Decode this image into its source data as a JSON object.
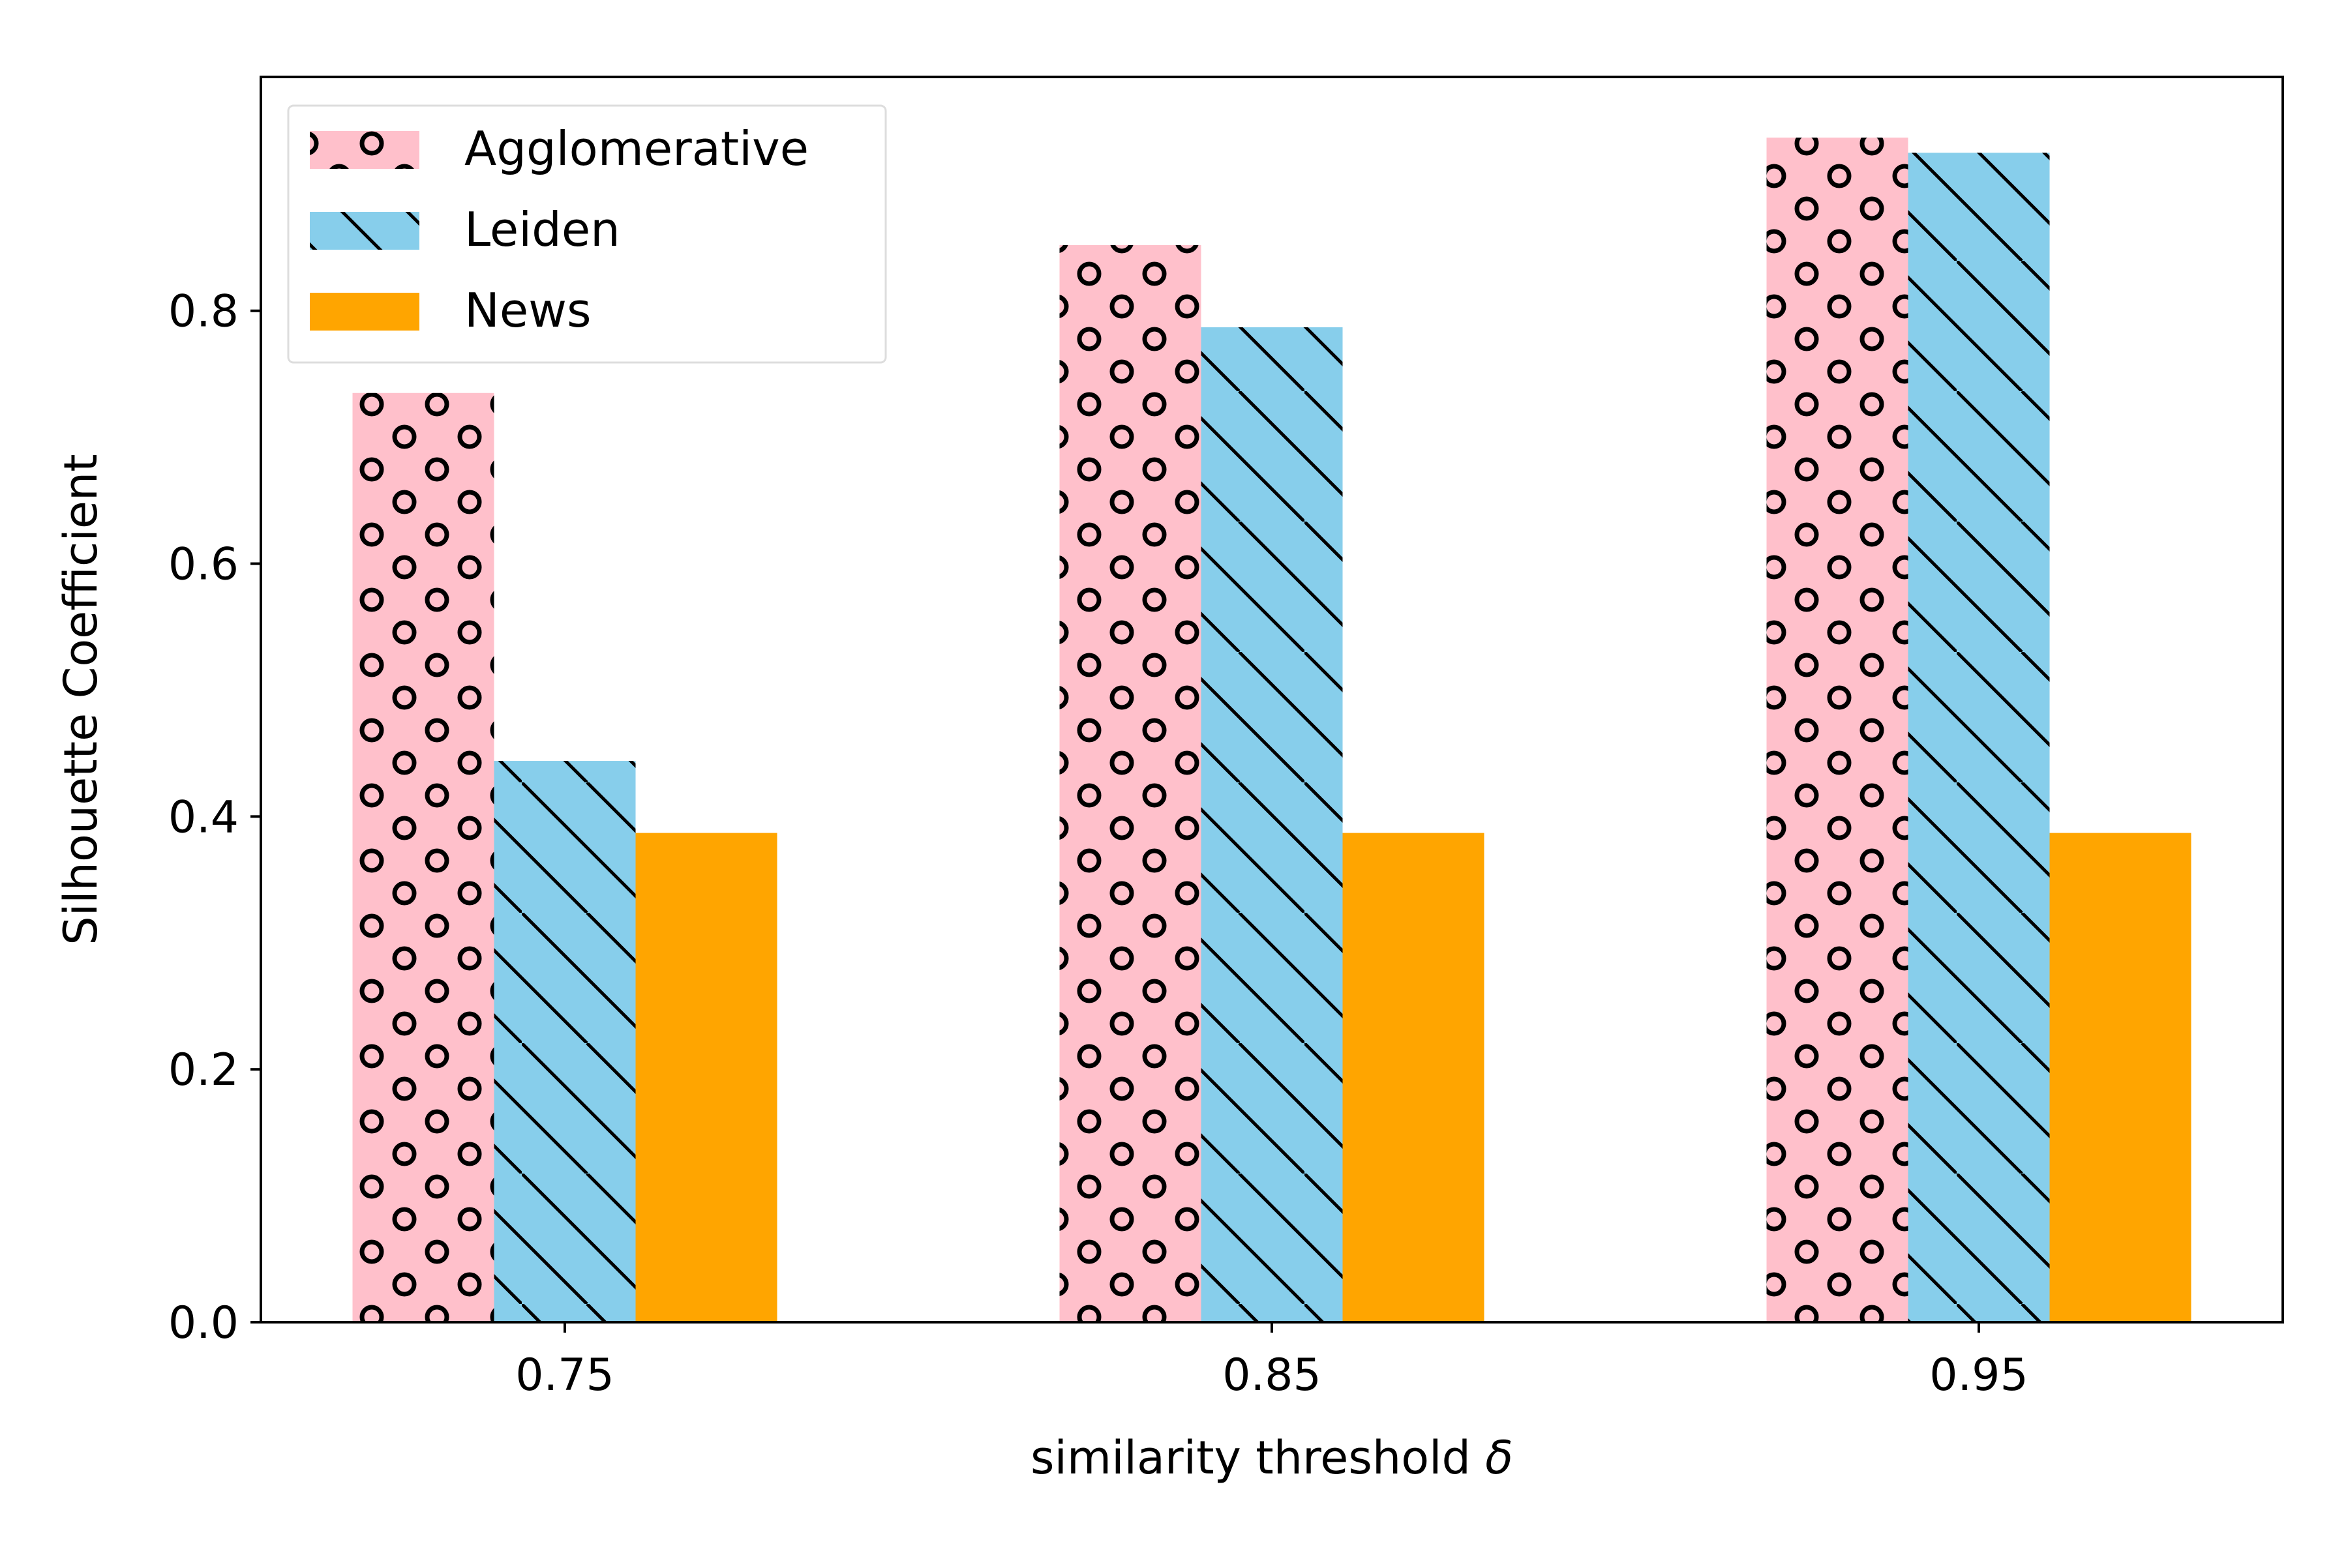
{
  "chart_data": {
    "type": "bar",
    "title": "",
    "xlabel": "similarity threshold",
    "xlabel_symbol": "δ",
    "ylabel": "Silhouette Coefficient",
    "categories": [
      "0.75",
      "0.85",
      "0.95"
    ],
    "series": [
      {
        "name": "Agglomerative",
        "values": [
          0.735,
          0.852,
          0.937
        ],
        "color": "#ffc0cb",
        "pattern": "circles"
      },
      {
        "name": "Leiden",
        "values": [
          0.444,
          0.787,
          0.925
        ],
        "color": "#87ceeb",
        "pattern": "diagonal"
      },
      {
        "name": "News",
        "values": [
          0.387,
          0.387,
          0.387
        ],
        "color": "#ffa500",
        "pattern": "none"
      }
    ],
    "ylim": [
      0,
      0.985
    ],
    "yticks": [
      0.0,
      0.2,
      0.4,
      0.6,
      0.8
    ],
    "ytick_labels": [
      "0.0",
      "0.2",
      "0.4",
      "0.6",
      "0.8"
    ],
    "grid": false,
    "legend_position": "top-left"
  }
}
